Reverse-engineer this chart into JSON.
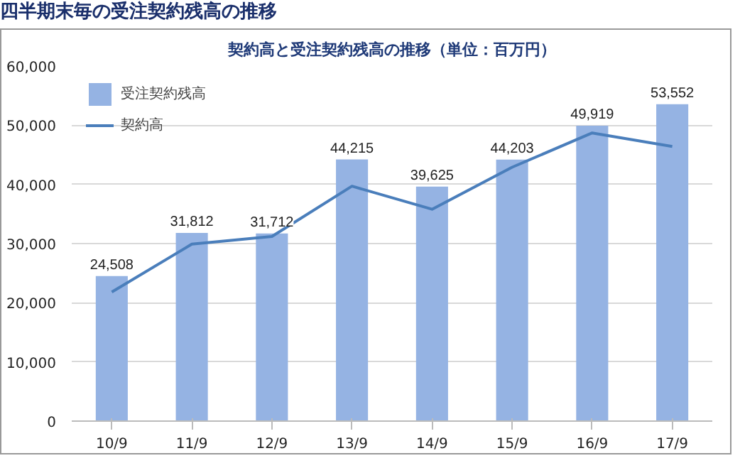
{
  "chart_data": {
    "type": "bar",
    "title": "四半期末毎の受注契約残高の推移",
    "subtitle": "契約高と受注契約残高の推移（単位：百万円）",
    "categories": [
      "10/9",
      "11/9",
      "12/9",
      "13/9",
      "14/9",
      "15/9",
      "16/9",
      "17/9"
    ],
    "series": [
      {
        "name": "受注契約残高",
        "color": "#95b3e3",
        "values": [
          24508,
          31812,
          31712,
          44215,
          39625,
          44203,
          49919,
          53552
        ],
        "value_labels": [
          "24,508",
          "31,812",
          "31,712",
          "44,215",
          "39,625",
          "44,203",
          "49,919",
          "53,552"
        ]
      },
      {
        "name": "契約高",
        "type": "line",
        "color": "#4a7ebb",
        "values": [
          21800,
          29900,
          31200,
          39700,
          35800,
          42900,
          48700,
          46400
        ]
      }
    ],
    "ylim": [
      0,
      60000
    ],
    "yticks": [
      {
        "value": 0,
        "label": "0"
      },
      {
        "value": 10000,
        "label": "10,000"
      },
      {
        "value": 20000,
        "label": "20,000"
      },
      {
        "value": 30000,
        "label": "30,000"
      },
      {
        "value": 40000,
        "label": "40,000"
      },
      {
        "value": 50000,
        "label": "50,000"
      },
      {
        "value": 60000,
        "label": "60,000"
      }
    ],
    "grid": "y",
    "legend": "top left",
    "marker": "none",
    "line_style": "solid"
  }
}
